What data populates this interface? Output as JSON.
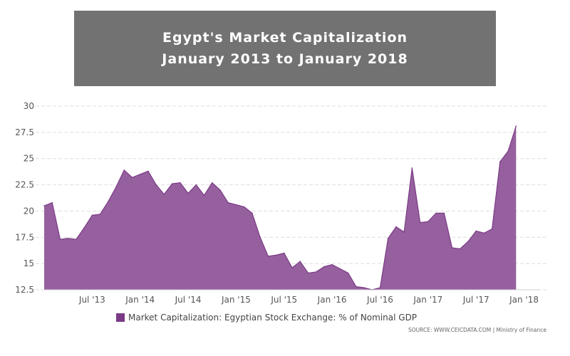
{
  "title": {
    "line1": "Egypt's Market Capitalization",
    "line2": "January 2013 to January 2018"
  },
  "chart_data": {
    "type": "area",
    "x_start": "2013-01",
    "x_end": "2018-03",
    "ylim": [
      12.5,
      30
    ],
    "grid": true,
    "yticks": [
      "30",
      "27.5",
      "25",
      "22.5",
      "20",
      "17.5",
      "15",
      "12.5"
    ],
    "ytick_values": [
      30,
      27.5,
      25,
      22.5,
      20,
      17.5,
      15,
      12.5
    ],
    "xticks": [
      {
        "label": "Jul '13",
        "date": "2013-07"
      },
      {
        "label": "Jan '14",
        "date": "2014-01"
      },
      {
        "label": "Jul '14",
        "date": "2014-07"
      },
      {
        "label": "Jan '15",
        "date": "2015-01"
      },
      {
        "label": "Jul '15",
        "date": "2015-07"
      },
      {
        "label": "Jan '16",
        "date": "2016-01"
      },
      {
        "label": "Jul '16",
        "date": "2016-07"
      },
      {
        "label": "Jan '17",
        "date": "2017-01"
      },
      {
        "label": "Jul '17",
        "date": "2017-07"
      },
      {
        "label": "Jan '18",
        "date": "2018-01"
      }
    ],
    "series": [
      {
        "name": "Market Capitalization: Egyptian Stock Exchange: % of Nominal GDP",
        "color": "#96609e",
        "points": [
          [
            "2013-01",
            20.5
          ],
          [
            "2013-02",
            20.8
          ],
          [
            "2013-03",
            17.3
          ],
          [
            "2013-04",
            17.4
          ],
          [
            "2013-05",
            17.3
          ],
          [
            "2013-06",
            18.4
          ],
          [
            "2013-07",
            19.6
          ],
          [
            "2013-08",
            19.7
          ],
          [
            "2013-09",
            20.9
          ],
          [
            "2013-10",
            22.3
          ],
          [
            "2013-11",
            23.9
          ],
          [
            "2013-12",
            23.2
          ],
          [
            "2014-01",
            23.5
          ],
          [
            "2014-02",
            23.8
          ],
          [
            "2014-03",
            22.5
          ],
          [
            "2014-04",
            21.6
          ],
          [
            "2014-05",
            22.6
          ],
          [
            "2014-06",
            22.7
          ],
          [
            "2014-07",
            21.7
          ],
          [
            "2014-08",
            22.5
          ],
          [
            "2014-09",
            21.5
          ],
          [
            "2014-10",
            22.7
          ],
          [
            "2014-11",
            22.0
          ],
          [
            "2014-12",
            20.8
          ],
          [
            "2015-01",
            20.6
          ],
          [
            "2015-02",
            20.4
          ],
          [
            "2015-03",
            19.8
          ],
          [
            "2015-04",
            17.5
          ],
          [
            "2015-05",
            15.7
          ],
          [
            "2015-06",
            15.8
          ],
          [
            "2015-07",
            16.0
          ],
          [
            "2015-08",
            14.6
          ],
          [
            "2015-09",
            15.2
          ],
          [
            "2015-10",
            14.1
          ],
          [
            "2015-11",
            14.2
          ],
          [
            "2015-12",
            14.7
          ],
          [
            "2016-01",
            14.9
          ],
          [
            "2016-02",
            14.5
          ],
          [
            "2016-03",
            14.1
          ],
          [
            "2016-04",
            12.8
          ],
          [
            "2016-05",
            12.7
          ],
          [
            "2016-06",
            12.5
          ],
          [
            "2016-07",
            12.7
          ],
          [
            "2016-08",
            17.4
          ],
          [
            "2016-09",
            18.5
          ],
          [
            "2016-10",
            18.0
          ],
          [
            "2016-11",
            24.1
          ],
          [
            "2016-12",
            18.9
          ],
          [
            "2017-01",
            19.0
          ],
          [
            "2017-02",
            19.8
          ],
          [
            "2017-03",
            19.8
          ],
          [
            "2017-04",
            16.5
          ],
          [
            "2017-05",
            16.4
          ],
          [
            "2017-06",
            17.1
          ],
          [
            "2017-07",
            18.1
          ],
          [
            "2017-08",
            17.9
          ],
          [
            "2017-09",
            18.3
          ],
          [
            "2017-10",
            24.7
          ],
          [
            "2017-11",
            25.7
          ],
          [
            "2017-12",
            28.1
          ]
        ]
      }
    ]
  },
  "legend": {
    "label": "Market Capitalization: Egyptian Stock Exchange: % of Nominal GDP",
    "color": "#7a3a86"
  },
  "source": "SOURCE: WWW.CEICDATA.COM | Ministry of Finance"
}
